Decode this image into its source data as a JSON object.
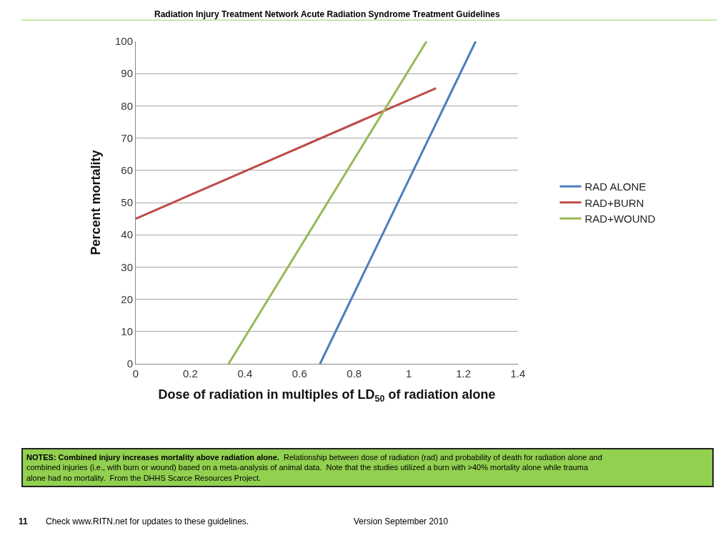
{
  "chart_data": {
    "type": "line",
    "title": "Radiation Injury Treatment Network Acute Radiation Syndrome Treatment Guidelines",
    "xlabel": "Dose of radiation in multiples of LD$_{50}$ of radiation alone",
    "ylabel": "Percent mortality",
    "series": [
      {
        "name": "RAD ALONE",
        "color": "#4a7ebb",
        "x": [
          0.675,
          1.245
        ],
        "values": [
          0,
          100
        ]
      },
      {
        "name": "RAD+BURN",
        "color": "#be4b48",
        "x": [
          0,
          1.1
        ],
        "values": [
          45,
          85.5
        ]
      },
      {
        "name": "RAD+WOUND",
        "color": "#98b954",
        "x": [
          0.34,
          1.065
        ],
        "values": [
          0,
          100
        ]
      }
    ],
    "xlim": [
      0,
      1.4
    ],
    "xticks": [
      0,
      0.2,
      0.4,
      0.6,
      0.8,
      1,
      1.2,
      1.4
    ],
    "ylim": [
      0,
      100
    ],
    "yticks": [
      0,
      10,
      20,
      30,
      40,
      50,
      60,
      70,
      80,
      90,
      100
    ],
    "grid": "y",
    "legend": "right",
    "marker": "none",
    "line_style": "solid",
    "annotations": [
      "NOTES: Combined injury increases mortality above radiation alone.",
      "Relationship between dose of radiation (rad) and probability of death for radiation alone and combined injuries (i.e., with burn or wound) based on a meta-analysis of animal data.  Note that the studies utilized a burn with >40% mortality alone while trauma alone had no mortality.  From the DHHS Scarce Resources Project.",
      "11",
      "Check www.RITN.net for updates to these guidelines.",
      "Version September 2010"
    ]
  }
}
